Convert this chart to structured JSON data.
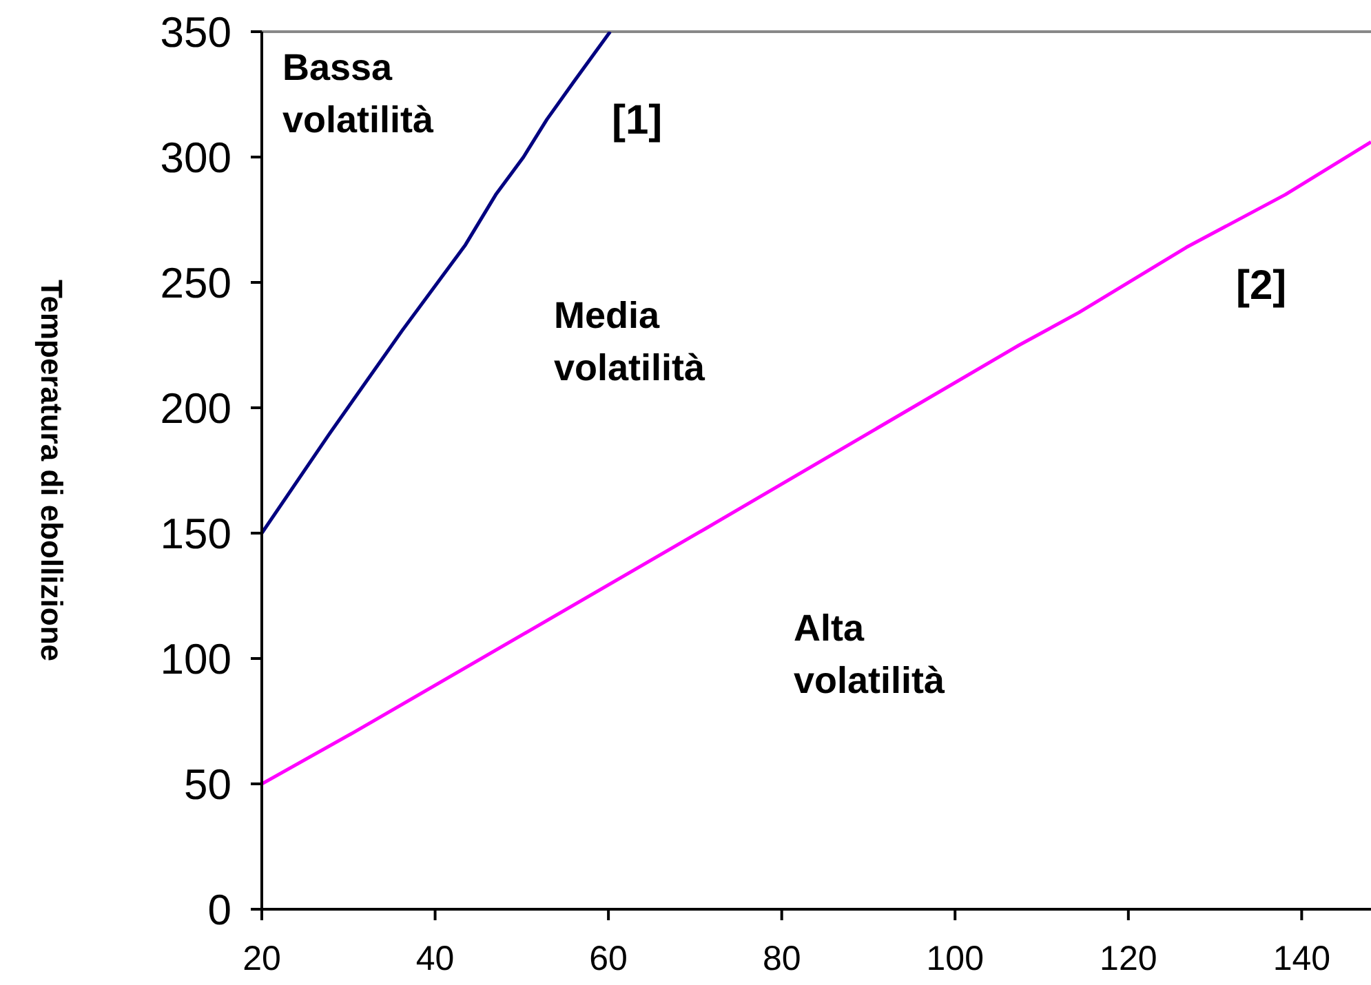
{
  "chart_data": {
    "type": "line",
    "ylabel": "Temperatura di ebollizione",
    "xlim": [
      20,
      148
    ],
    "ylim": [
      0,
      350
    ],
    "xticks": [
      20,
      40,
      60,
      80,
      100,
      120,
      140
    ],
    "yticks": [
      0,
      50,
      100,
      150,
      200,
      250,
      300,
      350
    ],
    "grid": false,
    "line_style": "solid",
    "series": [
      {
        "color": "#000080",
        "x": [
          20,
          27.8,
          36.2,
          43.5,
          47,
          50.2,
          52.9,
          56,
          60.2
        ],
        "values": [
          150,
          189.6,
          230.8,
          265,
          285,
          300,
          315,
          330,
          350
        ]
      },
      {
        "color": "#ff00ff",
        "x": [
          20,
          30.8,
          71.3,
          107.4,
          114.3,
          126.7,
          138.1,
          148
        ],
        "values": [
          50,
          70.9,
          152,
          225,
          238,
          264,
          285,
          306
        ]
      }
    ],
    "annotations": [
      "Bassa volatilità",
      "[1]",
      "Media volatilità",
      "[2]",
      "Alta volatilità"
    ]
  }
}
